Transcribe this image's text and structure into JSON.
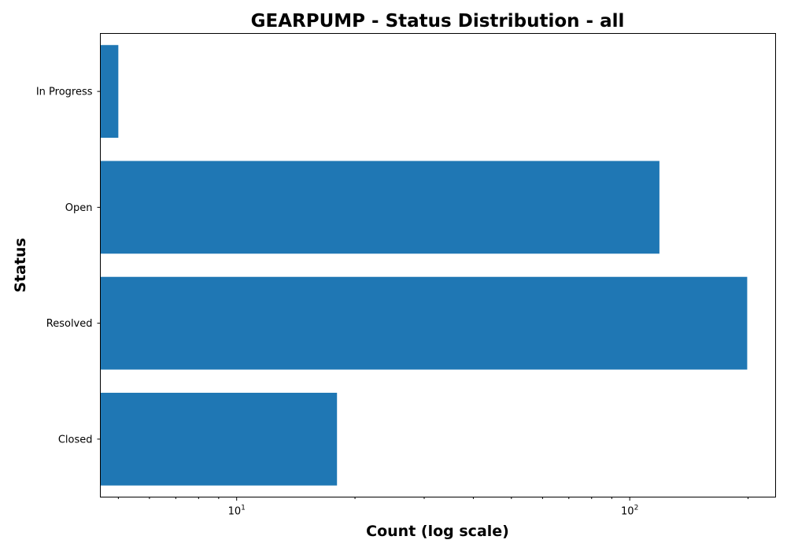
{
  "chart_data": {
    "type": "bar",
    "orientation": "horizontal",
    "title": "GEARPUMP - Status Distribution - all",
    "xlabel": "Count (log scale)",
    "ylabel": "Status",
    "x_scale": "log",
    "xlim": [
      4.5,
      235
    ],
    "x_ticks": [
      {
        "value": 10,
        "base": "10",
        "exponent": "1"
      },
      {
        "value": 100,
        "base": "10",
        "exponent": "2"
      }
    ],
    "categories": [
      "In Progress",
      "Open",
      "Resolved",
      "Closed"
    ],
    "values": [
      5,
      119,
      199,
      18
    ],
    "color": "#1f77b4",
    "grid": false,
    "legend": "none"
  }
}
